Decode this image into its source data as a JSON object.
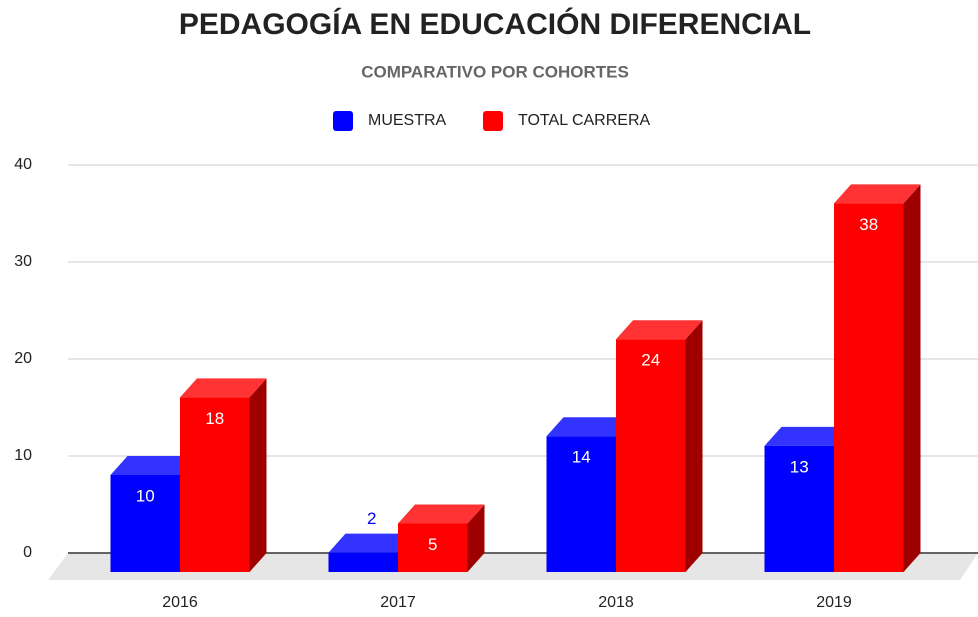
{
  "chart_data": {
    "type": "bar3d",
    "title": "PEDAGOGÍA EN EDUCACIÓN DIFERENCIAL",
    "subtitle": "COMPARATIVO POR COHORTES",
    "categories": [
      "2016",
      "2017",
      "2018",
      "2019"
    ],
    "series": [
      {
        "name": "MUESTRA",
        "color": "#0000ff",
        "values": [
          10,
          2,
          14,
          13
        ]
      },
      {
        "name": "TOTAL CARRERA",
        "color": "#ff0000",
        "values": [
          18,
          5,
          24,
          38
        ]
      }
    ],
    "ylim": [
      0,
      40
    ],
    "yticks": [
      0,
      10,
      20,
      30,
      40
    ],
    "grid": true,
    "legend": "top"
  }
}
